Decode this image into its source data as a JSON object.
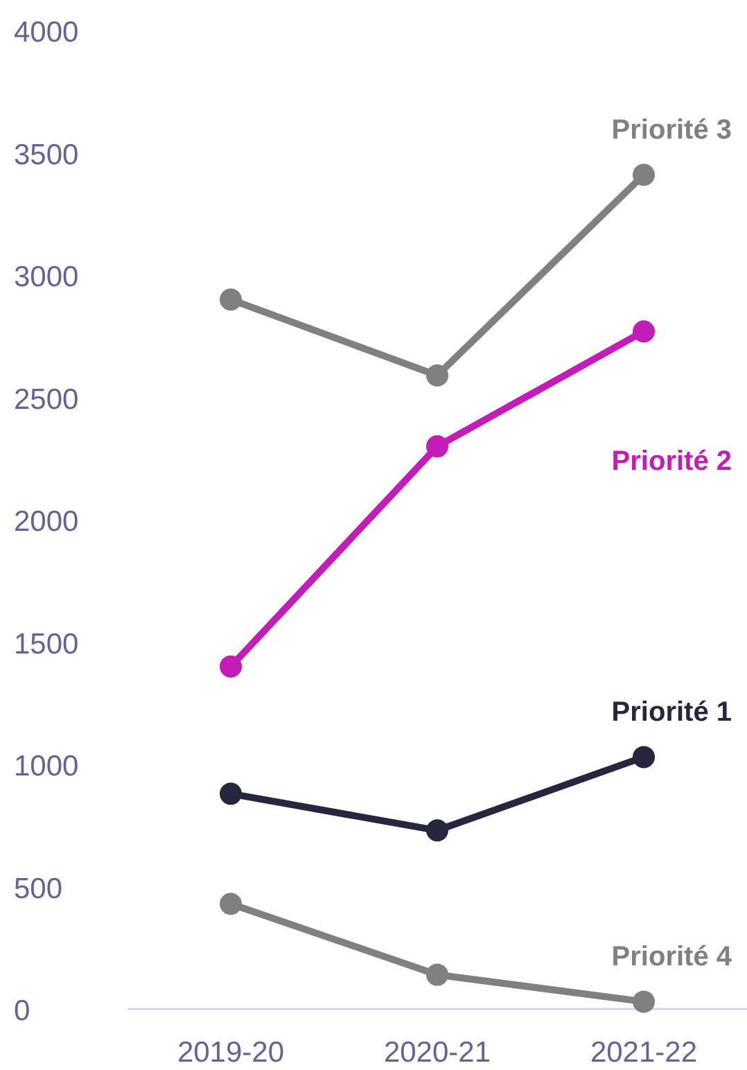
{
  "chart_data": {
    "type": "line",
    "categories": [
      "2019-20",
      "2020-21",
      "2021-22"
    ],
    "series": [
      {
        "name": "Priorité 3",
        "color": "#808080",
        "values": [
          2900,
          2590,
          3410
        ]
      },
      {
        "name": "Priorité 2",
        "color": "#c41cb8",
        "values": [
          1400,
          2300,
          2770
        ]
      },
      {
        "name": "Priorité 1",
        "color": "#27263f",
        "values": [
          880,
          730,
          1030
        ]
      },
      {
        "name": "Priorité 4",
        "color": "#808080",
        "values": [
          430,
          140,
          30
        ]
      }
    ],
    "ylim": [
      0,
      4000
    ],
    "yticks": [
      0,
      500,
      1000,
      1500,
      2000,
      2500,
      3000,
      3500,
      4000
    ],
    "grid": false,
    "marker": "circle",
    "line_style": "solid"
  }
}
